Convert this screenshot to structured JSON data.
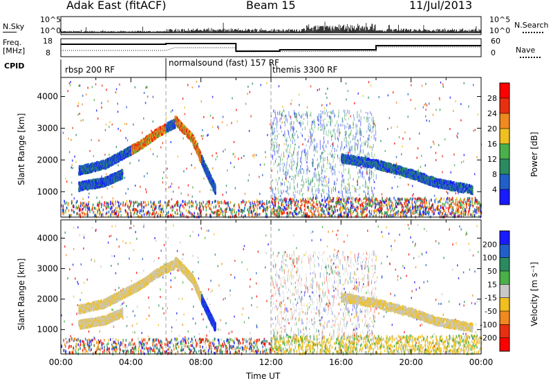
{
  "header": {
    "title": "Adak East (fitACF)",
    "beam": "Beam 15",
    "date": "11/Jul/2013"
  },
  "status_panel": {
    "nsky_label": "N.Sky",
    "nsky_ticks": [
      "10^5",
      "10^0"
    ],
    "nsearch_label": "N.Search",
    "nsearch_ticks": [
      "10^5",
      "10^0"
    ],
    "freq_label": "Freq.",
    "freq_unit": "[MHz]",
    "freq_ticks": [
      "18",
      "8"
    ],
    "nave_label": "Nave",
    "nave_ticks": [
      "60",
      "0"
    ],
    "cpid_label": "CPID",
    "cpid_segments": [
      {
        "label": "rbsp 200 RF",
        "start_hour": 0
      },
      {
        "label": "normalsound (fast) 157 RF",
        "start_hour": 6
      },
      {
        "label": "themis 3300 RF",
        "start_hour": 12
      }
    ]
  },
  "chart_data": [
    {
      "type": "heatmap",
      "name": "power",
      "ylabel": "Slant Range [km]",
      "xlim": [
        0,
        24
      ],
      "ylim": [
        200,
        4600
      ],
      "y_ticks": [
        1000,
        2000,
        3000,
        4000
      ],
      "colorbar": {
        "label": "Power [dB]",
        "ticks": [
          "4",
          "8",
          "12",
          "16",
          "20",
          "24",
          "28"
        ],
        "colors": [
          "#1a1aff",
          "#2060c8",
          "#2a8a60",
          "#4ab04a",
          "#f0c020",
          "#f08a20",
          "#e83010",
          "#ff0000"
        ]
      },
      "scatter_echo_bands": [
        {
          "x": [
            1.0,
            2.5,
            3.5,
            4.5,
            5.5,
            6.5
          ],
          "y": [
            1700,
            1900,
            2200,
            2500,
            2900,
            3200
          ]
        },
        {
          "x": [
            1.0,
            2.5,
            3.5
          ],
          "y": [
            1200,
            1350,
            1600
          ]
        },
        {
          "x": [
            6.5,
            7.5,
            8.2,
            8.8
          ],
          "y": [
            3300,
            2700,
            1800,
            1100
          ]
        },
        {
          "x": [
            16.0,
            18.0,
            20.0,
            21.5,
            23.5
          ],
          "y": [
            2100,
            1900,
            1600,
            1300,
            1100
          ]
        }
      ]
    },
    {
      "type": "heatmap",
      "name": "velocity",
      "ylabel": "Slant Range [km]",
      "xlim": [
        0,
        24
      ],
      "ylim": [
        200,
        4600
      ],
      "y_ticks": [
        1000,
        2000,
        3000,
        4000
      ],
      "colorbar": {
        "label": "Velocity [m s⁻¹]",
        "ticks": [
          "200",
          "100",
          "50",
          "15",
          "-15",
          "-50",
          "-100",
          "-200"
        ],
        "colors": [
          "#1a1aff",
          "#2060c8",
          "#2a8a60",
          "#4ab04a",
          "#c8c8c8",
          "#f0c020",
          "#f08a20",
          "#e83010",
          "#ff0000"
        ]
      }
    }
  ],
  "x_axis": {
    "label": "Time UT",
    "ticks": [
      "00:00",
      "04:00",
      "08:00",
      "12:00",
      "16:00",
      "20:00",
      "00:00"
    ]
  }
}
